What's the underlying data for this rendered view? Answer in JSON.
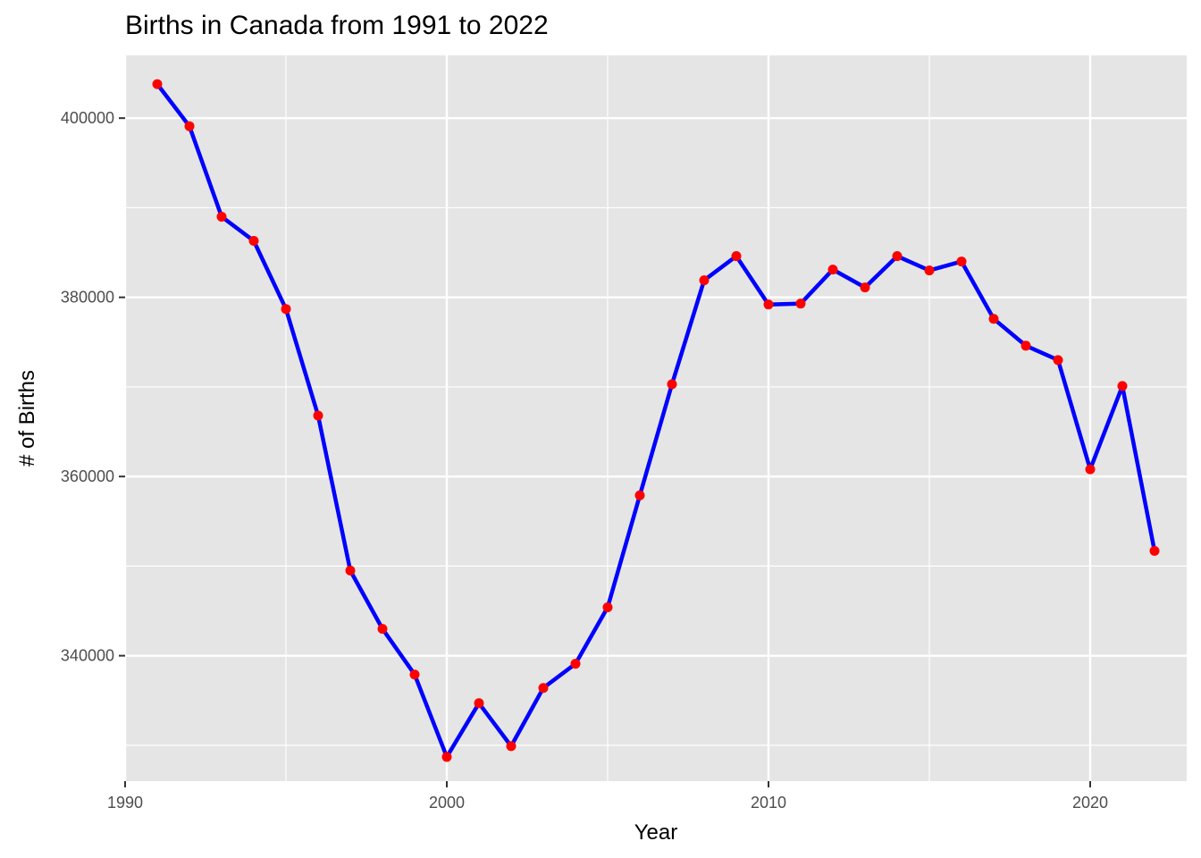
{
  "chart_data": {
    "type": "line",
    "title": "Births in Canada from 1991 to 2022",
    "xlabel": "Year",
    "ylabel": "# of Births",
    "xlim": [
      1990,
      2023
    ],
    "ylim": [
      326000,
      407000
    ],
    "x_ticks": [
      1990,
      2000,
      2010,
      2020
    ],
    "y_ticks": [
      340000,
      360000,
      380000,
      400000
    ],
    "grid": true,
    "legend": "none",
    "colors": {
      "line": "#0000ff",
      "points": "#ff0000",
      "panel": "#e5e5e5",
      "grid": "#ffffff"
    },
    "series": [
      {
        "x": [
          1991,
          1992,
          1993,
          1994,
          1995,
          1996,
          1997,
          1998,
          1999,
          2000,
          2001,
          2002,
          2003,
          2004,
          2005,
          2006,
          2007,
          2008,
          2009,
          2010,
          2011,
          2012,
          2013,
          2014,
          2015,
          2016,
          2017,
          2018,
          2019,
          2020,
          2021,
          2022
        ],
        "y": [
          403800,
          399100,
          389000,
          386300,
          378700,
          366800,
          349500,
          343000,
          337900,
          328700,
          334700,
          329900,
          336400,
          339100,
          345400,
          357900,
          370300,
          381900,
          384600,
          379200,
          379300,
          383100,
          381100,
          384600,
          383000,
          384000,
          377600,
          374600,
          373000,
          360800,
          370100,
          351700
        ]
      }
    ]
  }
}
